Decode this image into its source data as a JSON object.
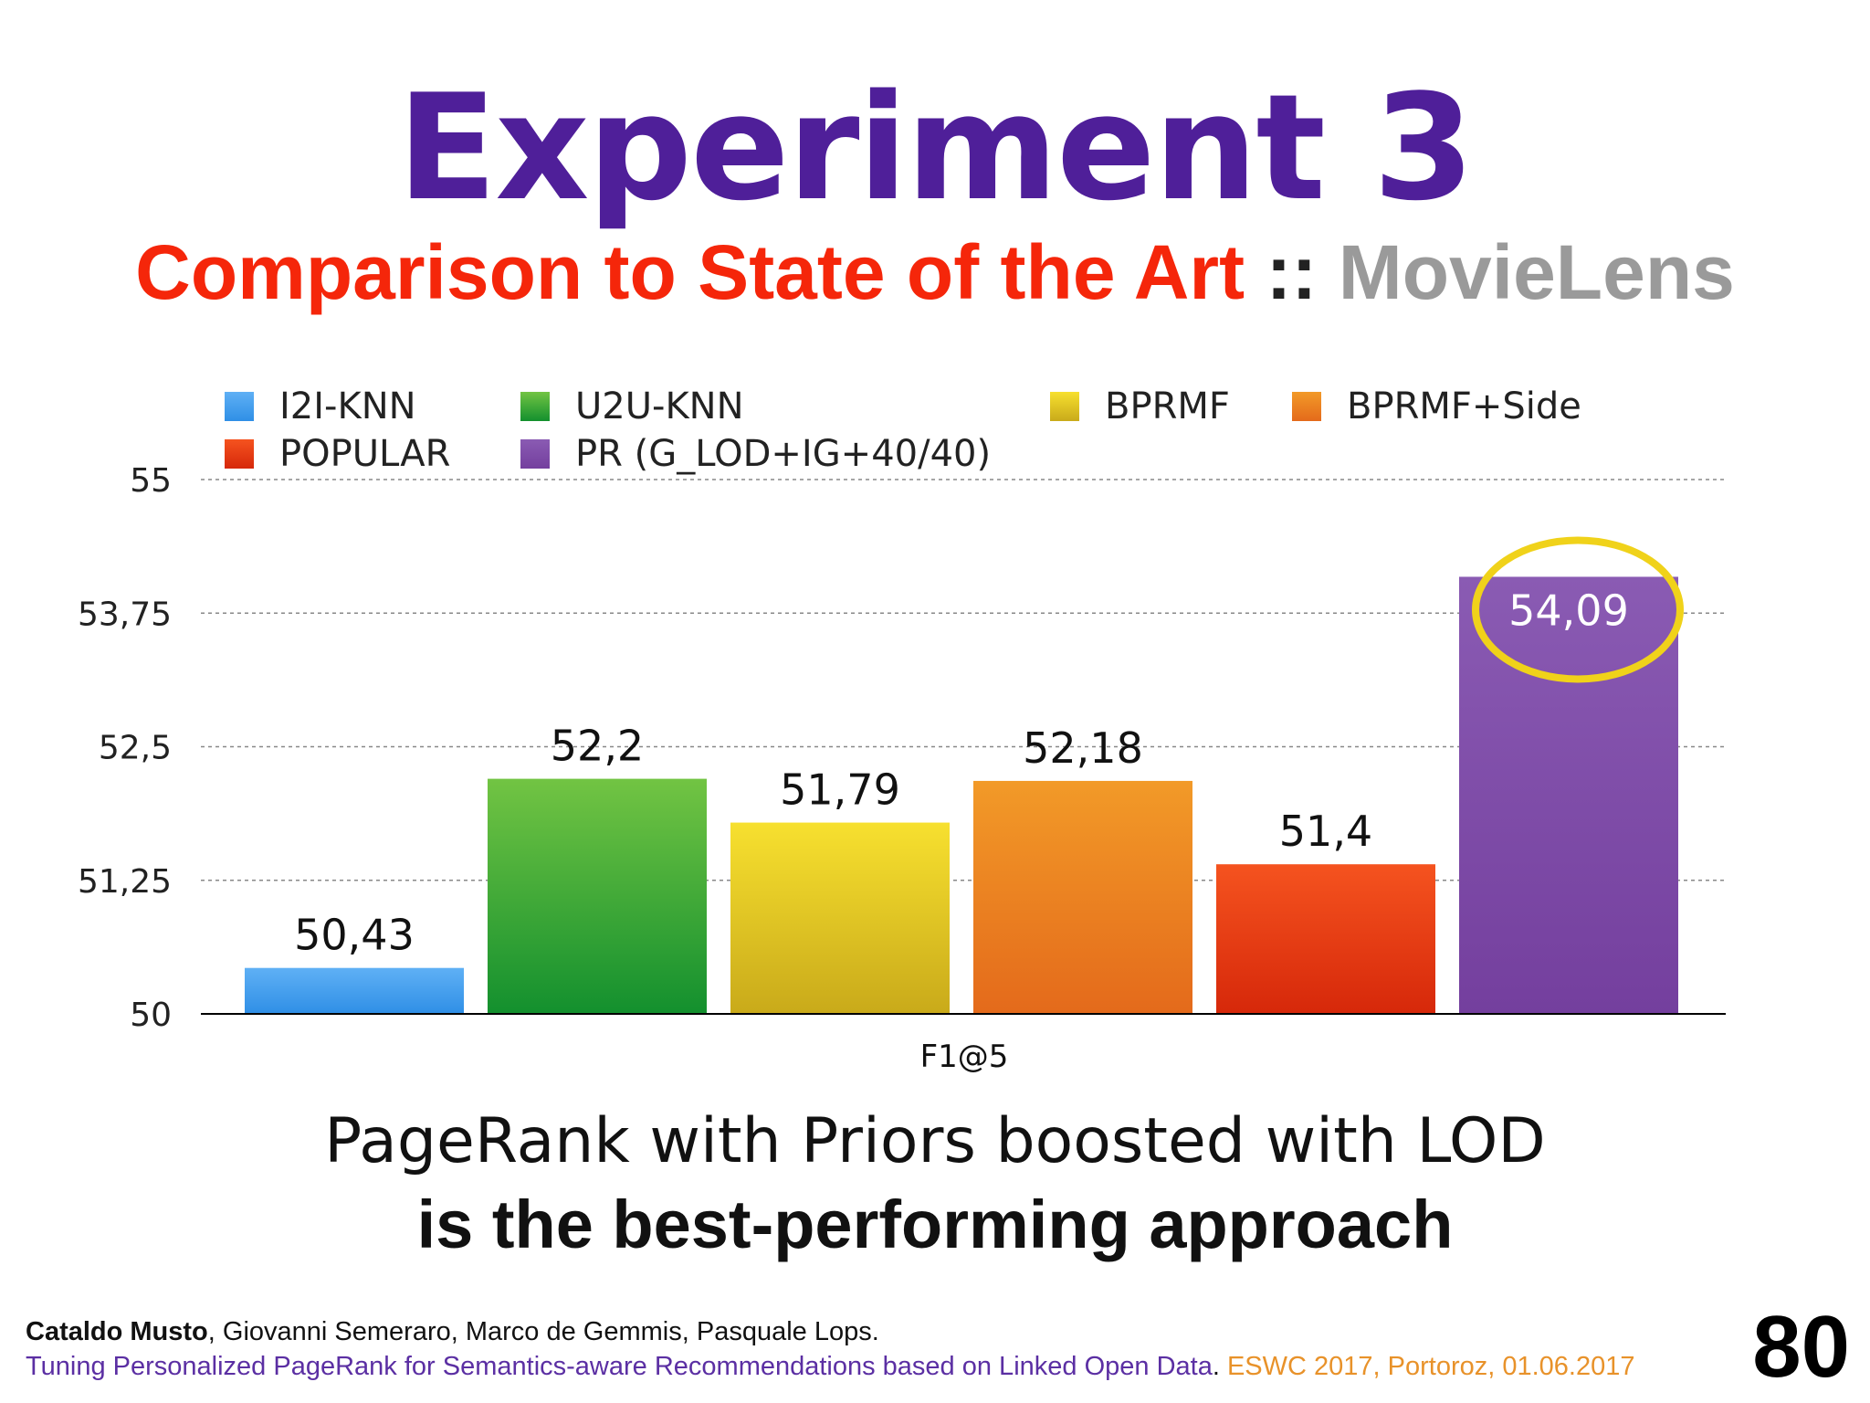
{
  "title": "Experiment 3",
  "subtitle": {
    "part1": "Comparison to State of the Art",
    "separator": "::",
    "part2": "MovieLens"
  },
  "chart_data": {
    "type": "bar",
    "categories": [
      "F1@5"
    ],
    "xlabel": "F1@5",
    "ylabel": "",
    "ylim": [
      50,
      55
    ],
    "yticks": [
      "50",
      "51,25",
      "52,5",
      "53,75",
      "55"
    ],
    "grid": true,
    "legend_position": "top",
    "highlighted_series": "PR (G_LOD+IG+40/40)",
    "series": [
      {
        "name": "I2I-KNN",
        "values": [
          50.43
        ],
        "label": "50,43",
        "color": "#2f8fe6",
        "color_light": "#5fb0f5"
      },
      {
        "name": "U2U-KNN",
        "values": [
          52.2
        ],
        "label": "52,2",
        "color": "#13902e",
        "color_light": "#72c443"
      },
      {
        "name": "BPRMF",
        "values": [
          51.79
        ],
        "label": "51,79",
        "color": "#c9aa1a",
        "color_light": "#f7e02f"
      },
      {
        "name": "BPRMF+Side",
        "values": [
          52.18
        ],
        "label": "52,18",
        "color": "#e46a1b",
        "color_light": "#f29a28"
      },
      {
        "name": "POPULAR",
        "values": [
          51.4
        ],
        "label": "51,4",
        "color": "#d6280a",
        "color_light": "#f5531f"
      },
      {
        "name": "PR (G_LOD+IG+40/40)",
        "values": [
          54.09
        ],
        "label": "54,09",
        "color": "#743f9e",
        "color_light": "#8a5bb3"
      }
    ]
  },
  "tagline": {
    "line1": "PageRank with Priors boosted with LOD",
    "line2": "is the best-performing approach"
  },
  "footer": {
    "lead_author": "Cataldo Musto",
    "other_authors": ", Giovanni Semeraro, Marco de Gemmis, Pasquale Lops.",
    "paper_title": "Tuning Personalized PageRank for Semantics-aware Recommendations based on Linked Open Data",
    "dot": ".",
    "conference": " ESWC 2017, Portoroz, 01.06.2017"
  },
  "page_number": "80",
  "colors": {
    "title": "#4f1f99",
    "subtitle_red": "#f5260a",
    "subtitle_gray": "#9a9a9a",
    "highlight_circle": "#f0d21a"
  }
}
